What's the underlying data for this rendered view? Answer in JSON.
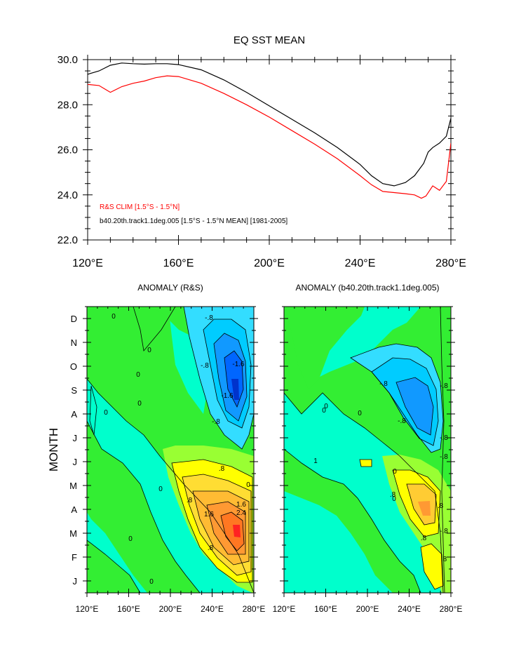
{
  "chart_data": [
    {
      "type": "line",
      "title": "EQ SST MEAN",
      "xlim": [
        120,
        280
      ],
      "ylim": [
        22,
        30
      ],
      "x_ticks": [
        "120°E",
        "160°E",
        "200°E",
        "240°E",
        "280°E"
      ],
      "y_ticks": [
        "22.0",
        "24.0",
        "26.0",
        "28.0",
        "30.0"
      ],
      "legend_position": "bottom-left",
      "series": [
        {
          "name": "b40.20th.track1.1deg.005 [1.5°S - 1.5°N MEAN] [1981-2005]",
          "color": "#000000",
          "x": [
            120,
            125,
            130,
            135,
            140,
            145,
            150,
            155,
            160,
            170,
            180,
            190,
            200,
            210,
            220,
            230,
            240,
            245,
            250,
            255,
            260,
            264,
            268,
            270,
            272,
            275,
            278,
            280
          ],
          "y": [
            29.35,
            29.5,
            29.75,
            29.85,
            29.82,
            29.8,
            29.82,
            29.82,
            29.78,
            29.55,
            29.1,
            28.55,
            27.95,
            27.35,
            26.75,
            26.1,
            25.35,
            24.85,
            24.5,
            24.4,
            24.55,
            24.85,
            25.4,
            25.9,
            26.1,
            26.3,
            26.6,
            27.4
          ]
        },
        {
          "name": "R&S CLIM [1.5°S - 1.5°N]",
          "color": "#ff0000",
          "x": [
            120,
            125,
            130,
            135,
            140,
            145,
            150,
            155,
            160,
            170,
            180,
            190,
            200,
            210,
            220,
            230,
            240,
            245,
            250,
            255,
            260,
            264,
            267,
            269,
            272,
            275,
            278,
            280
          ],
          "y": [
            28.9,
            28.85,
            28.55,
            28.8,
            28.95,
            29.05,
            29.2,
            29.28,
            29.25,
            28.95,
            28.5,
            28.0,
            27.45,
            26.85,
            26.25,
            25.6,
            24.85,
            24.45,
            24.15,
            24.1,
            24.05,
            24.0,
            23.85,
            23.95,
            24.4,
            24.2,
            24.6,
            26.3
          ]
        }
      ]
    },
    {
      "type": "heatmap",
      "title": "ANOMALY (R&S)",
      "x_ticks": [
        "120°E",
        "160°E",
        "200°E",
        "240°E",
        "280°E"
      ],
      "y_ticks": [
        "J",
        "F",
        "M",
        "A",
        "M",
        "J",
        "J",
        "A",
        "S",
        "O",
        "N",
        "D"
      ],
      "ylabel": "MONTH",
      "contour_labels": [
        "0",
        "0",
        "0",
        "0",
        "0",
        "0",
        "0",
        "0",
        "-.8",
        "-.8",
        "-1.6",
        "-1.6",
        "-.8",
        ".8",
        ".8",
        "1.6",
        "1.6",
        "2.4",
        ".8",
        "0"
      ]
    },
    {
      "type": "heatmap",
      "title": "ANOMALY (b40.20th.track1.1deg.005)",
      "x_ticks": [
        "120°E",
        "160°E",
        "200°E",
        "240°E",
        "280°E"
      ],
      "y_ticks": [],
      "contour_labels": [
        "0",
        "0",
        "-.8",
        "-.8",
        "-.8",
        "-.8",
        "-.8",
        "0",
        ".8",
        ".8",
        ".8",
        ".8",
        "-.8",
        "0",
        "0",
        "1"
      ]
    }
  ]
}
